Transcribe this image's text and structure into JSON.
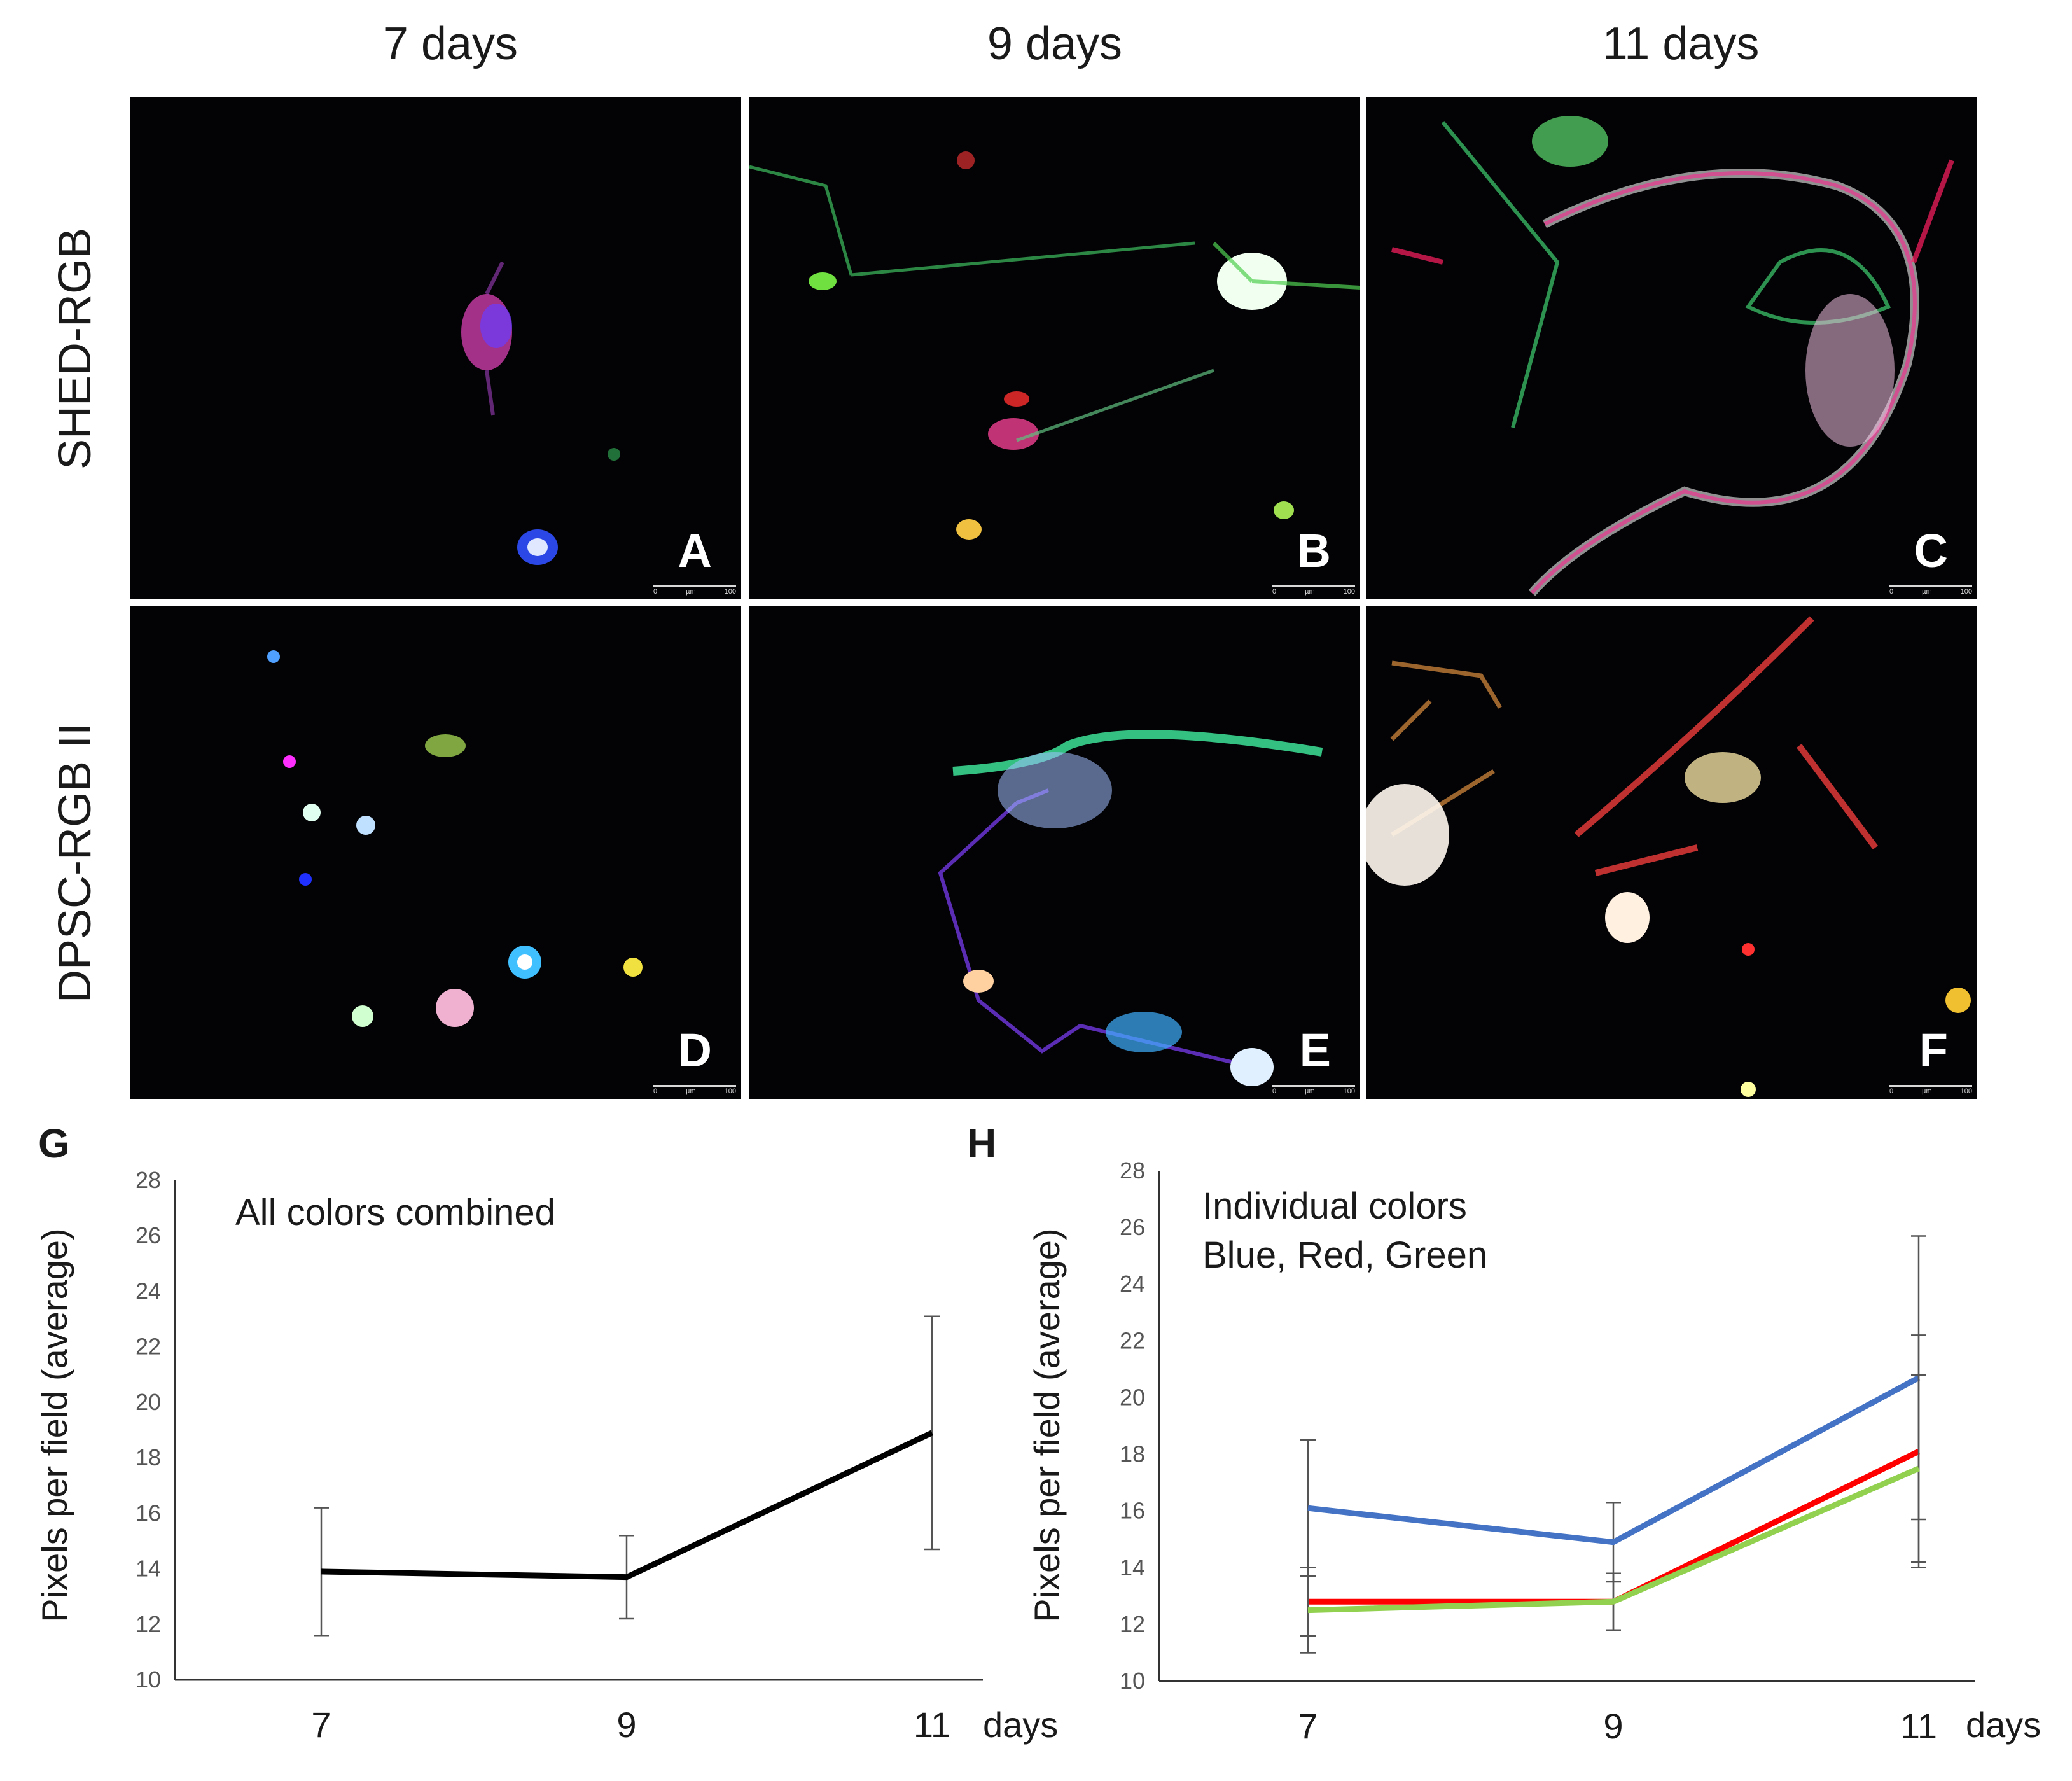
{
  "columns": [
    "7 days",
    "9 days",
    "11 days"
  ],
  "rows": [
    "SHED-RGB",
    "DPSC-RGB II"
  ],
  "panels": [
    "A",
    "B",
    "C",
    "D",
    "E",
    "F"
  ],
  "scale_bar": {
    "start": "0",
    "unit": "µm",
    "end": "100"
  },
  "chart_data": [
    {
      "panel_label": "G",
      "type": "line",
      "annotation": [
        "All colors combined"
      ],
      "xlabel": "days",
      "ylabel": "Pixels per field (average)",
      "categories": [
        "7",
        "9",
        "11"
      ],
      "ylim": [
        10,
        28
      ],
      "yticks": [
        "10",
        "12",
        "14",
        "16",
        "18",
        "20",
        "22",
        "24",
        "26",
        "28"
      ],
      "series": [
        {
          "name": "All colors",
          "color": "#000000",
          "values": [
            13.9,
            13.7,
            18.9
          ],
          "errors": [
            2.3,
            1.5,
            4.2
          ]
        }
      ]
    },
    {
      "panel_label": "H",
      "type": "line",
      "annotation": [
        "Individual colors",
        "Blue, Red, Green"
      ],
      "xlabel": "days",
      "ylabel": "Pixels per field (average)",
      "categories": [
        "7",
        "9",
        "11"
      ],
      "ylim": [
        10,
        28
      ],
      "yticks": [
        "10",
        "12",
        "14",
        "16",
        "18",
        "20",
        "22",
        "24",
        "26",
        "28"
      ],
      "series": [
        {
          "name": "Blue",
          "color": "#4472c4",
          "values": [
            16.1,
            14.9,
            20.7
          ],
          "errors": [
            2.4,
            1.4,
            5.0
          ]
        },
        {
          "name": "Red",
          "color": "#ff0000",
          "values": [
            12.8,
            12.8,
            18.1
          ],
          "errors": [
            1.2,
            1.0,
            4.1
          ]
        },
        {
          "name": "Green",
          "color": "#92d050",
          "values": [
            12.5,
            12.8,
            17.5
          ],
          "errors": [
            1.5,
            1.0,
            3.3
          ]
        }
      ]
    }
  ]
}
